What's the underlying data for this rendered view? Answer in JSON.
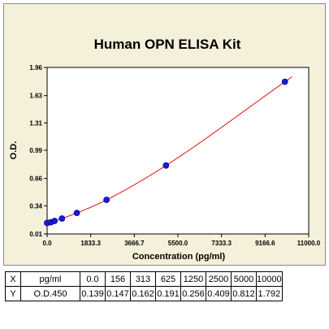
{
  "chart_data": {
    "type": "scatter",
    "title": "Human OPN ELISA Kit",
    "xlabel": "Concentration (pg/ml)",
    "ylabel": "O.D.",
    "xlim": [
      0,
      11000
    ],
    "ylim": [
      0.01,
      1.96
    ],
    "x_ticks": [
      "0.0",
      "1833.3",
      "3666.7",
      "5500.0",
      "7333.3",
      "9166.6",
      "11000.0"
    ],
    "x_tick_values": [
      0,
      1833.3,
      3666.7,
      5500.0,
      7333.3,
      9166.6,
      11000.0
    ],
    "y_ticks": [
      "0.01",
      "0.34",
      "0.66",
      "0.99",
      "1.31",
      "1.63",
      "1.96"
    ],
    "y_tick_values": [
      0.01,
      0.34,
      0.66,
      0.99,
      1.31,
      1.63,
      1.96
    ],
    "points": {
      "x": [
        0,
        156,
        313,
        625,
        1250,
        2500,
        5000,
        10000
      ],
      "y": [
        0.139,
        0.147,
        0.162,
        0.191,
        0.256,
        0.409,
        0.812,
        1.792
      ]
    },
    "fit_curve": true,
    "colors": {
      "points": "#1a1ad0",
      "curve": "#e01010",
      "background": "#f4f0da"
    }
  },
  "table": {
    "x_label": "X",
    "x_unit": "pg/ml",
    "x_values": [
      "0.0",
      "156",
      "313",
      "625",
      "1250",
      "2500",
      "5000",
      "10000"
    ],
    "y_label": "Y",
    "y_unit": "O.D.450",
    "y_values": [
      "0.139",
      "0.147",
      "0.162",
      "0.191",
      "0.256",
      "0.409",
      "0.812",
      "1.792"
    ]
  }
}
